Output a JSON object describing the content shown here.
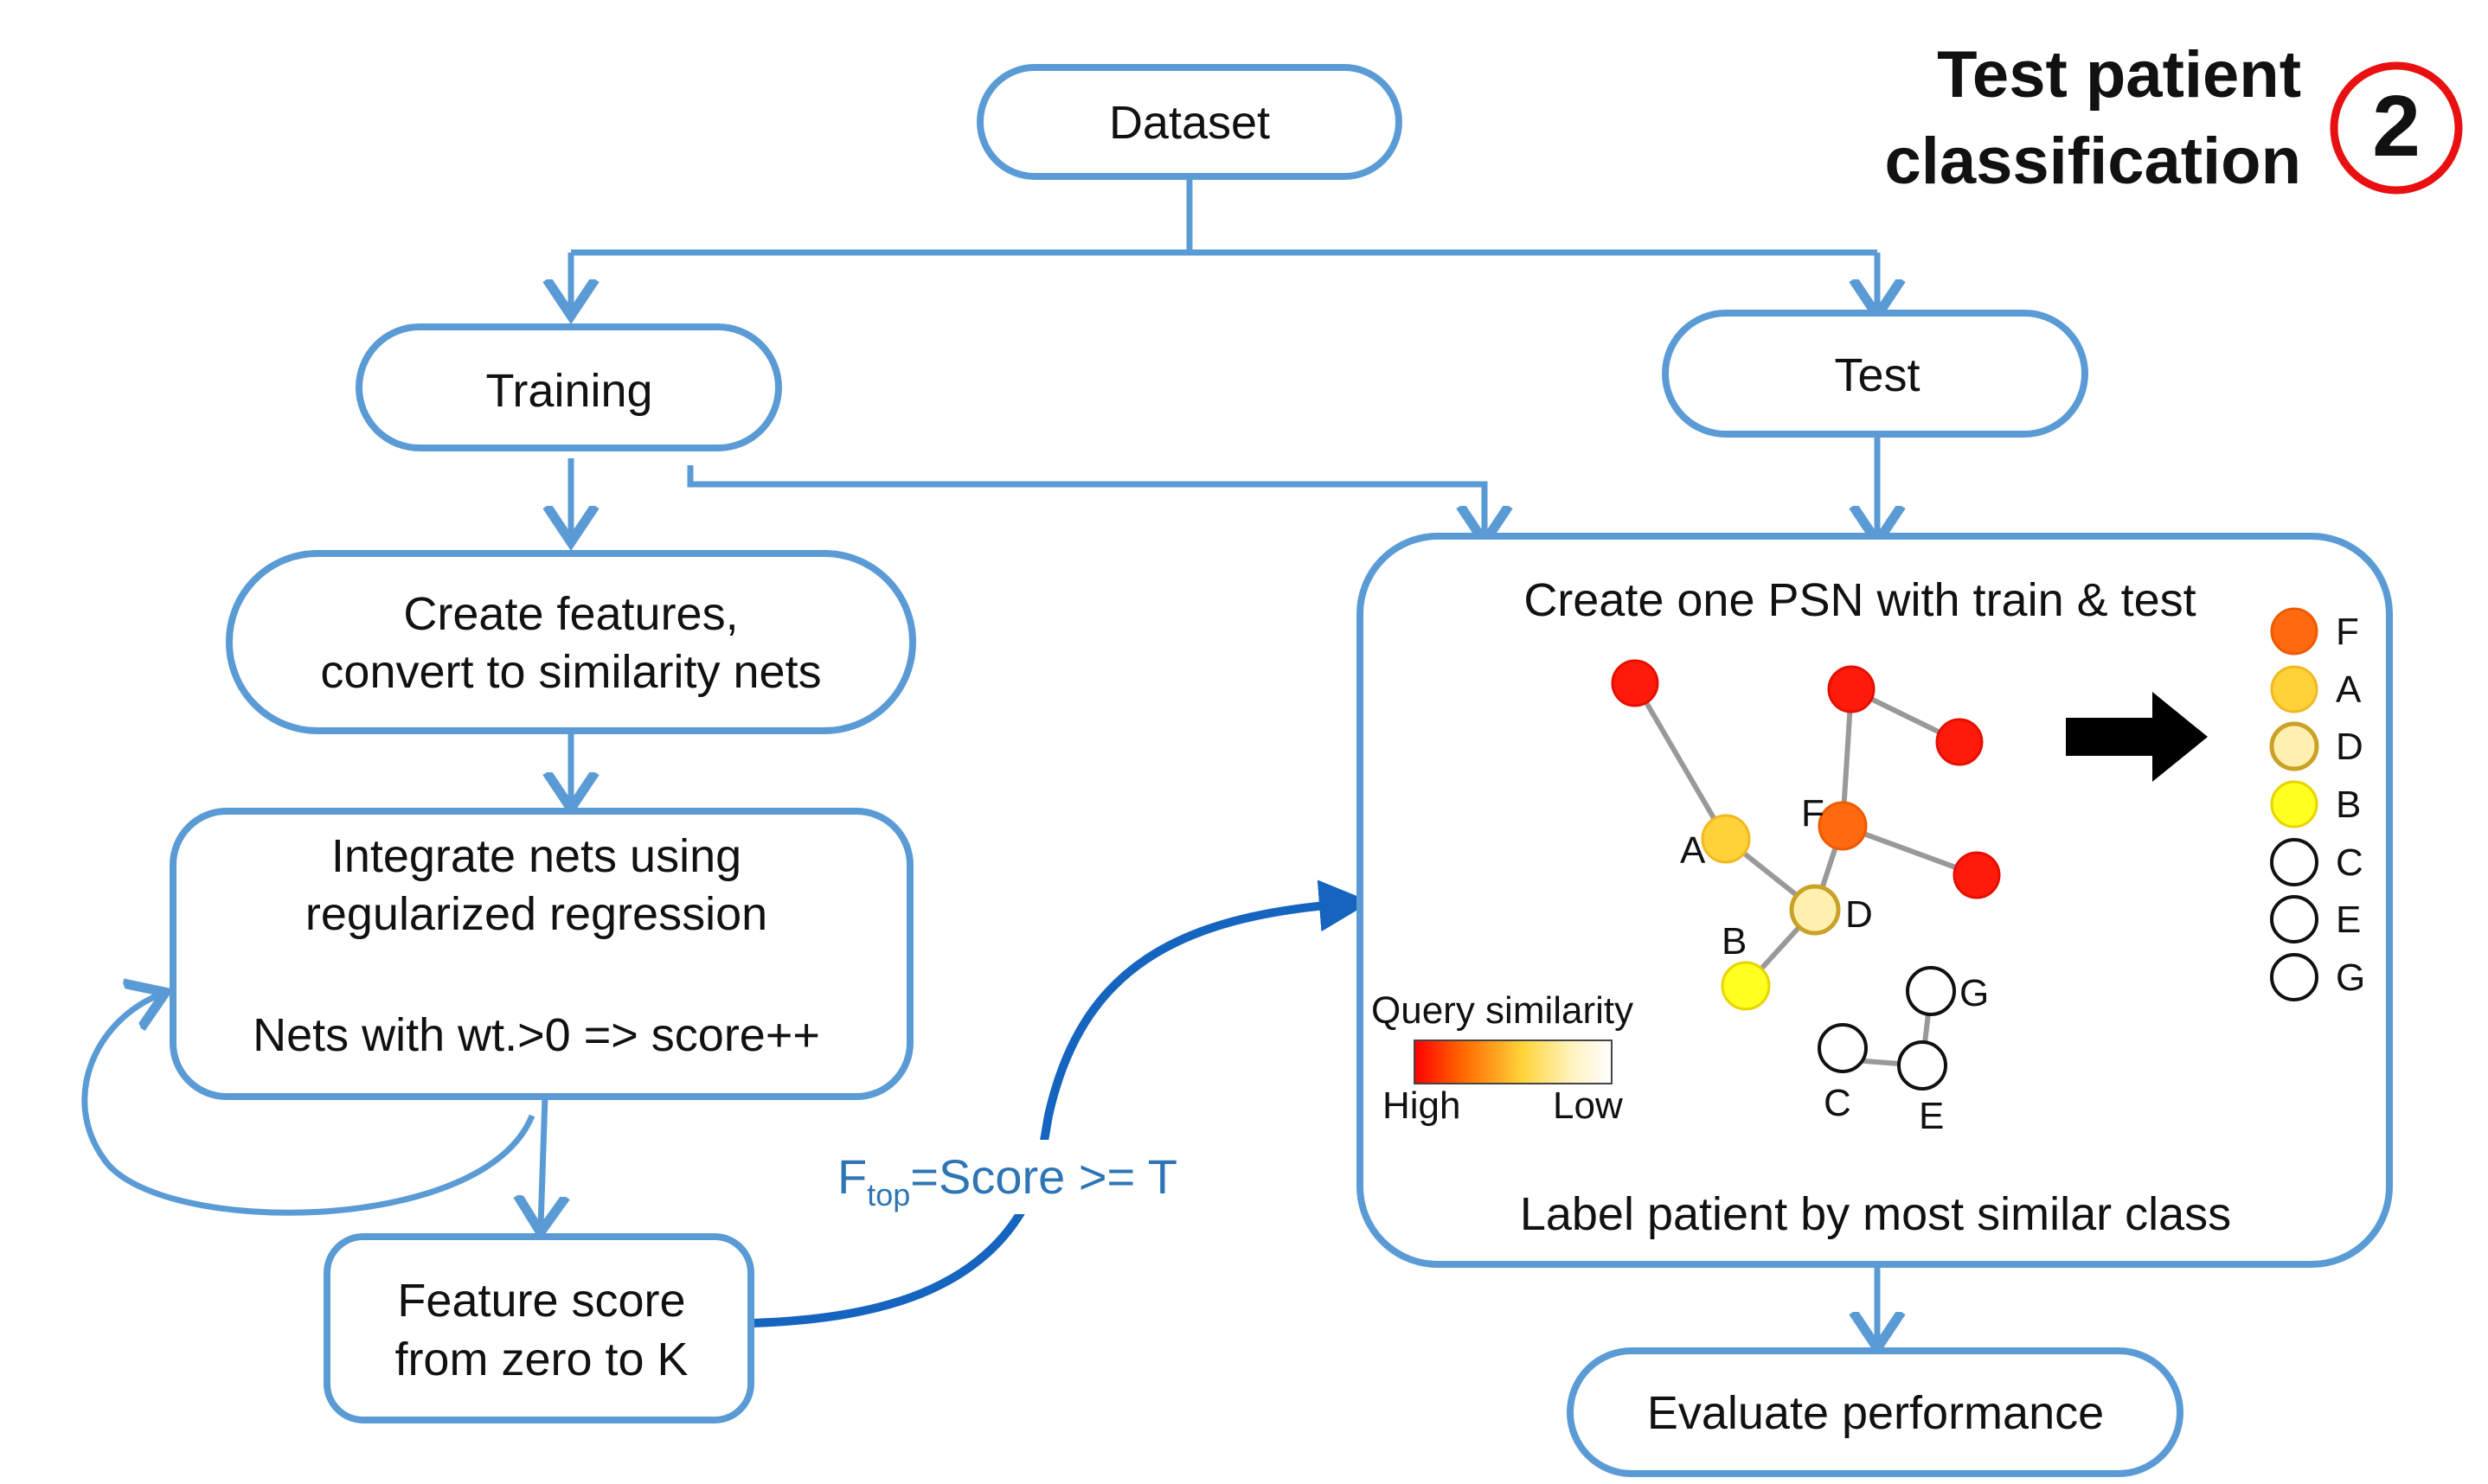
{
  "header": {
    "title_line1": "Test patient",
    "title_line2": "classification",
    "step_number": "2"
  },
  "boxes": {
    "dataset": "Dataset",
    "training": "Training",
    "test": "Test",
    "create_features_line1": "Create features,",
    "create_features_line2": "convert to similarity nets",
    "integrate_line1": "Integrate nets using",
    "integrate_line2": "regularized regression",
    "integrate_line3": "Nets with wt.>0  => score++",
    "feature_score_line1": "Feature score",
    "feature_score_line2": "from zero to K",
    "psn_title": "Create one PSN with train & test",
    "psn_footer": "Label patient by most similar class",
    "evaluate": "Evaluate performance"
  },
  "threshold_label": {
    "prefix": "F",
    "subscript": "top",
    "suffix": "=Score >= T"
  },
  "network": {
    "nodes": [
      {
        "label": "A",
        "color": "#FFD23A"
      },
      {
        "label": "F",
        "color": "#FF6A10"
      },
      {
        "label": "D",
        "color": "#FFF0B0"
      },
      {
        "label": "B",
        "color": "#FFFF20"
      },
      {
        "label": "C",
        "color": "#FFFFFF"
      },
      {
        "label": "E",
        "color": "#FFFFFF"
      },
      {
        "label": "G",
        "color": "#FFFFFF"
      }
    ],
    "unlabeled_node_color": "#FF1A0A"
  },
  "legend": {
    "title": "Query similarity",
    "high_label": "High",
    "low_label": "Low"
  },
  "ranking": [
    {
      "label": "F",
      "color": "#FF6A10"
    },
    {
      "label": "A",
      "color": "#FFD23A"
    },
    {
      "label": "D",
      "color": "#FFF0B0"
    },
    {
      "label": "B",
      "color": "#FFFF20"
    },
    {
      "label": "C",
      "color": "#FFFFFF"
    },
    {
      "label": "E",
      "color": "#FFFFFF"
    },
    {
      "label": "G",
      "color": "#FFFFFF"
    }
  ],
  "colors": {
    "box_stroke": "#5B9BD5",
    "arrow": "#5B9BD5",
    "curve_arrow": "#1565C0",
    "threshold_text": "#2E75B6",
    "badge_ring": "#E81010"
  }
}
